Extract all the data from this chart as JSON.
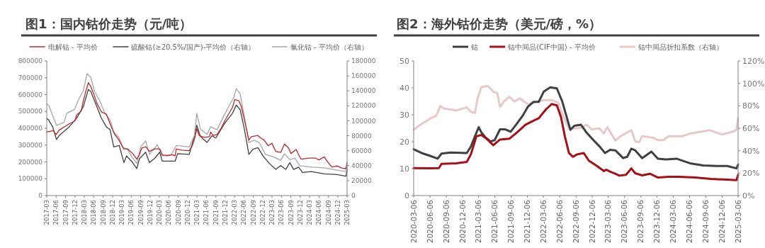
{
  "chart_data": [
    {
      "type": "line",
      "title": "图1：国内钴价走势（元/吨）",
      "legend": "top",
      "xlim": [
        "2017-03",
        "2025-03"
      ],
      "xticks": [
        "2017-03",
        "2017-06",
        "2017-09",
        "2017-12",
        "2018-03",
        "2018-06",
        "2018-09",
        "2018-12",
        "2019-03",
        "2019-06",
        "2019-09",
        "2019-12",
        "2020-03",
        "2020-06",
        "2020-09",
        "2020-12",
        "2021-03",
        "2021-06",
        "2021-09",
        "2021-12",
        "2022-03",
        "2022-06",
        "2022-09",
        "2022-12",
        "2023-03",
        "2023-06",
        "2023-09",
        "2023-12",
        "2024-03",
        "2024-06",
        "2024-09",
        "2024-12",
        "2025-03"
      ],
      "ylim": [
        0,
        800000
      ],
      "yticks": [
        0,
        100000,
        200000,
        300000,
        400000,
        500000,
        600000,
        700000,
        800000
      ],
      "y2lim": [
        0,
        180000
      ],
      "y2ticks": [
        0,
        20000,
        40000,
        60000,
        80000,
        100000,
        120000,
        140000,
        160000,
        180000
      ],
      "series": [
        {
          "name": "硫酸钴(≥20.5%/国产)-平均价（右轴）",
          "color": "#404040",
          "axis": "y2",
          "x": [
            "2017-03-01",
            "2017-03-20",
            "2017-04-27",
            "2017-06-04",
            "2017-06-28",
            "2017-10-06",
            "2017-12-19",
            "2018-02-20",
            "2018-04-10",
            "2018-05-04",
            "2018-07-04",
            "2018-08-13",
            "2018-10-01",
            "2018-11-07",
            "2018-12-13",
            "2019-02-04",
            "2019-03-22",
            "2019-04-16",
            "2019-06-16",
            "2019-07-25",
            "2019-08-19",
            "2019-10-19",
            "2019-11-25",
            "2020-01-16",
            "2020-03-04",
            "2020-03-28",
            "2020-08-01",
            "2020-08-25",
            "2020-12-16",
            "2021-02-04",
            "2021-02-28",
            "2021-04-04",
            "2021-06-07",
            "2021-07-25",
            "2021-09-01",
            "2021-11-28",
            "2022-02-10",
            "2022-03-19",
            "2022-04-25",
            "2022-06-01",
            "2022-07-07",
            "2022-07-19",
            "2022-08-28",
            "2022-10-16",
            "2022-12-04",
            "2023-02-04",
            "2023-04-07",
            "2023-05-25",
            "2023-07-13",
            "2023-08-22",
            "2023-09-28",
            "2023-11-16",
            "2023-12-22",
            "2024-03-19",
            "2024-07-22",
            "2024-11-22",
            "2025-02-19",
            "2025-03-01"
          ],
          "values": [
            103000,
            101000,
            92000,
            75000,
            80000,
            92000,
            104000,
            119000,
            142000,
            139000,
            118000,
            104000,
            92000,
            88000,
            65000,
            67000,
            44000,
            53000,
            44000,
            36000,
            49000,
            58000,
            44000,
            50000,
            58000,
            46000,
            46000,
            56000,
            55000,
            79000,
            94000,
            79000,
            71000,
            80000,
            77000,
            97000,
            110000,
            121000,
            115000,
            92000,
            65000,
            55000,
            62000,
            64000,
            53000,
            43000,
            35000,
            40000,
            35000,
            44000,
            35000,
            38000,
            31000,
            32000,
            29000,
            28000,
            26000,
            35000
          ]
        },
        {
          "name": "氯化钴 - 平均价（右轴）",
          "color": "#a6a6a6",
          "axis": "y2",
          "x": [
            "2017-03-01",
            "2017-03-20",
            "2017-04-27",
            "2017-06-04",
            "2017-08-17",
            "2017-09-11",
            "2017-11-25",
            "2018-01-13",
            "2018-02-20",
            "2018-03-28",
            "2018-05-04",
            "2018-06-10",
            "2018-07-29",
            "2018-09-19",
            "2018-11-07",
            "2018-12-13",
            "2019-02-04",
            "2019-03-10",
            "2019-04-28",
            "2019-06-16",
            "2019-07-25",
            "2019-09-01",
            "2019-10-19",
            "2019-11-25",
            "2020-02-10",
            "2020-03-28",
            "2020-06-25",
            "2020-08-13",
            "2020-12-16",
            "2021-02-04",
            "2021-02-28",
            "2021-04-04",
            "2021-06-07",
            "2021-07-13",
            "2021-09-13",
            "2021-11-15",
            "2022-01-16",
            "2022-02-22",
            "2022-03-19",
            "2022-04-25",
            "2022-06-13",
            "2022-07-19",
            "2022-09-09",
            "2022-10-28",
            "2022-12-28",
            "2023-03-13",
            "2023-05-25",
            "2023-07-01",
            "2023-08-22",
            "2023-10-10",
            "2023-11-28",
            "2024-03-19",
            "2024-07-22",
            "2024-11-22",
            "2025-02-19",
            "2025-03-01"
          ],
          "values": [
            122000,
            121000,
            107000,
            94000,
            98000,
            110000,
            115000,
            131000,
            140000,
            163000,
            158000,
            139000,
            127000,
            110000,
            101000,
            85000,
            77000,
            65000,
            61000,
            50000,
            43000,
            65000,
            73000,
            55000,
            68000,
            53000,
            55000,
            67000,
            65000,
            80000,
            110000,
            89000,
            82000,
            92000,
            88000,
            106000,
            122000,
            131000,
            143000,
            136000,
            100000,
            71000,
            74000,
            71000,
            55000,
            52000,
            47000,
            56000,
            48000,
            50000,
            40000,
            38000,
            37000,
            34000,
            32000,
            38000
          ]
        },
        {
          "name": "电解钴 - 平均价",
          "color": "#c0272d",
          "x": [
            "2017-03-01",
            "2017-05-01",
            "2017-06-01",
            "2017-07-01",
            "2017-10-01",
            "2017-12-01",
            "2017-12-15",
            "2018-02-01",
            "2018-02-15",
            "2018-03-15",
            "2018-04-10",
            "2018-05-01",
            "2018-06-01",
            "2018-07-01",
            "2018-08-15",
            "2018-10-01",
            "2018-11-01",
            "2018-12-15",
            "2019-02-01",
            "2019-03-20",
            "2019-04-28",
            "2019-06-15",
            "2019-07-25",
            "2019-08-20",
            "2019-09-12",
            "2019-10-20",
            "2019-11-25",
            "2020-01-15",
            "2020-03-05",
            "2020-03-28",
            "2020-05-15",
            "2020-07-05",
            "2020-08-01",
            "2020-08-12",
            "2020-10-01",
            "2020-12-15",
            "2021-01-10",
            "2021-02-03",
            "2021-03-01",
            "2021-03-22",
            "2021-05-12",
            "2021-07-01",
            "2021-07-12",
            "2021-08-07",
            "2021-09-12",
            "2021-10-20",
            "2021-11-27",
            "2022-01-15",
            "2022-02-10",
            "2022-03-04",
            "2022-04-12",
            "2022-05-06",
            "2022-06-01",
            "2022-06-25",
            "2022-07-20",
            "2022-08-13",
            "2022-10-15",
            "2022-11-09",
            "2022-12-15",
            "2023-01-22",
            "2023-03-01",
            "2023-04-06",
            "2023-05-25",
            "2023-07-01",
            "2023-08-09",
            "2023-09-02",
            "2023-10-22",
            "2023-11-16",
            "2023-12-10",
            "2024-02-25",
            "2024-04-25",
            "2024-06-01",
            "2024-07-22",
            "2024-08-28",
            "2024-10-04",
            "2024-11-22",
            "2025-01-12",
            "2025-02-18",
            "2025-03-01"
          ],
          "values": [
            377000,
            386000,
            363000,
            390000,
            424000,
            444000,
            477000,
            504000,
            550000,
            617000,
            671000,
            651000,
            604000,
            550000,
            497000,
            484000,
            437000,
            370000,
            330000,
            277000,
            277000,
            250000,
            216000,
            243000,
            283000,
            290000,
            263000,
            277000,
            277000,
            243000,
            236000,
            243000,
            236000,
            277000,
            270000,
            267000,
            290000,
            330000,
            397000,
            357000,
            346000,
            350000,
            377000,
            357000,
            363000,
            397000,
            444000,
            497000,
            524000,
            570000,
            564000,
            530000,
            464000,
            397000,
            330000,
            350000,
            357000,
            343000,
            330000,
            297000,
            310000,
            263000,
            256000,
            306000,
            283000,
            250000,
            274000,
            243000,
            216000,
            223000,
            223000,
            212000,
            230000,
            196000,
            170000,
            176000,
            163000,
            159000,
            196000
          ]
        }
      ]
    },
    {
      "type": "line",
      "title": "图2：海外钴价走势（美元/磅，%）",
      "legend": "top",
      "xlim": [
        "2020-03-06",
        "2025-03-06"
      ],
      "xticks": [
        "2020-03-06",
        "2020-06-06",
        "2020-09-06",
        "2020-12-06",
        "2021-03-06",
        "2021-06-06",
        "2021-09-06",
        "2021-12-06",
        "2022-03-06",
        "2022-06-06",
        "2022-09-06",
        "2022-12-06",
        "2023-03-06",
        "2023-06-06",
        "2023-09-06",
        "2023-12-06",
        "2024-03-06",
        "2024-06-06",
        "2024-09-06",
        "2024-12-06",
        "2025-03-06"
      ],
      "ylim": [
        0,
        50
      ],
      "yticks": [
        0,
        10,
        20,
        30,
        40,
        50
      ],
      "y2lim": [
        0,
        120
      ],
      "y2ticks": [
        {
          "value": 0,
          "label": "0%"
        },
        {
          "value": 20,
          "label": "20%"
        },
        {
          "value": 40,
          "label": "40%"
        },
        {
          "value": 60,
          "label": "60%"
        },
        {
          "value": 80,
          "label": "80%"
        },
        {
          "value": 100,
          "label": "100%"
        },
        {
          "value": 120,
          "label": "120%"
        }
      ],
      "series": [
        {
          "name": "钴中间品折扣系数（右轴）",
          "color": "#e8c8cc",
          "axis": "y2",
          "x": [
            "2020-03-06",
            "2020-04-13",
            "2020-06-04",
            "2020-07-11",
            "2020-08-03",
            "2020-08-25",
            "2020-10-31",
            "2020-12-30",
            "2021-01-22",
            "2021-02-14",
            "2021-02-28",
            "2021-03-22",
            "2021-04-28",
            "2021-05-28",
            "2021-06-20",
            "2021-07-05",
            "2021-07-27",
            "2021-08-26",
            "2021-09-25",
            "2021-10-25",
            "2021-12-09",
            "2022-01-24",
            "2022-03-08",
            "2022-04-22",
            "2022-05-28",
            "2022-06-28",
            "2022-07-28",
            "2022-09-04",
            "2022-10-04",
            "2022-11-03",
            "2022-12-02",
            "2023-01-17",
            "2023-02-09",
            "2023-03-01",
            "2023-03-23",
            "2023-04-15",
            "2023-05-15",
            "2023-06-21",
            "2023-07-14",
            "2023-08-05",
            "2023-08-28",
            "2023-09-13",
            "2023-11-11",
            "2023-12-11",
            "2024-01-10",
            "2024-02-09",
            "2024-04-23",
            "2024-06-08",
            "2024-08-06",
            "2024-09-28",
            "2024-12-05",
            "2025-02-03",
            "2025-02-25",
            "2025-03-06"
          ],
          "values": [
            58.6,
            63.2,
            68.3,
            71.3,
            79.8,
            77.5,
            75.9,
            78.6,
            74.7,
            73.6,
            86.2,
            96.6,
            97.7,
            92.6,
            91.3,
            78.9,
            83.9,
            88.1,
            83.9,
            86.7,
            81.2,
            83.5,
            85.1,
            85.1,
            82.8,
            70.1,
            59.8,
            59.8,
            60.5,
            63.2,
            59.1,
            59.8,
            55.2,
            60.9,
            55.2,
            49,
            52.9,
            56.3,
            58.2,
            48.3,
            47.6,
            52.9,
            51.7,
            49.4,
            49.4,
            52.9,
            52.9,
            55.2,
            56.8,
            58.2,
            54.5,
            56.8,
            58.6,
            69
          ]
        },
        {
          "name": "钴",
          "color": "#404040",
          "x": [
            "2020-03-06",
            "2020-04-20",
            "2020-06-04",
            "2020-07-19",
            "2020-08-10",
            "2020-10-01",
            "2020-12-30",
            "2021-01-22",
            "2021-02-14",
            "2021-03-07",
            "2021-03-22",
            "2021-04-14",
            "2021-05-13",
            "2021-06-05",
            "2021-07-05",
            "2021-08-04",
            "2021-09-03",
            "2021-10-03",
            "2021-11-10",
            "2021-12-09",
            "2022-01-09",
            "2022-02-08",
            "2022-03-08",
            "2022-04-14",
            "2022-05-21",
            "2022-06-20",
            "2022-07-13",
            "2022-08-05",
            "2022-08-27",
            "2022-10-04",
            "2022-11-03",
            "2022-12-10",
            "2023-01-17",
            "2023-02-16",
            "2023-03-16",
            "2023-04-15",
            "2023-05-29",
            "2023-06-21",
            "2023-07-14",
            "2023-08-05",
            "2023-09-13",
            "2023-11-04",
            "2023-12-11",
            "2024-01-25",
            "2024-03-24",
            "2024-06-08",
            "2024-08-22",
            "2024-11-05",
            "2025-01-04",
            "2025-02-25",
            "2025-03-06"
          ],
          "values": [
            17.2,
            15.8,
            14.8,
            13.7,
            15.6,
            16,
            15.8,
            18.2,
            22,
            25.4,
            23.5,
            21.6,
            20.1,
            20.6,
            24.6,
            24.6,
            23.7,
            26.3,
            29.7,
            33,
            34.8,
            34.8,
            38.6,
            40.2,
            39.8,
            35,
            29.7,
            24.4,
            25.9,
            26.3,
            23.5,
            20.8,
            18.2,
            15.8,
            17,
            16.8,
            13.9,
            14.4,
            17.4,
            16.8,
            13.9,
            16.3,
            13.7,
            13.4,
            13.7,
            12,
            11.2,
            11,
            11,
            10.1,
            11.5
          ]
        },
        {
          "name": "钴中间品(CIF中国) - 平均价",
          "color": "#a50f15",
          "x": [
            "2020-03-06",
            "2020-06-04",
            "2020-07-26",
            "2020-08-10",
            "2020-10-31",
            "2020-12-30",
            "2021-01-22",
            "2021-02-22",
            "2021-03-22",
            "2021-04-21",
            "2021-05-28",
            "2021-07-05",
            "2021-08-26",
            "2021-10-10",
            "2021-11-25",
            "2022-01-09",
            "2022-02-08",
            "2022-03-22",
            "2022-04-22",
            "2022-05-21",
            "2022-06-13",
            "2022-07-05",
            "2022-07-28",
            "2022-08-20",
            "2022-09-12",
            "2022-10-19",
            "2022-11-18",
            "2023-01-02",
            "2023-02-09",
            "2023-02-23",
            "2023-03-16",
            "2023-04-15",
            "2023-05-07",
            "2023-06-14",
            "2023-07-14",
            "2023-08-05",
            "2023-09-13",
            "2023-10-27",
            "2023-12-11",
            "2024-02-09",
            "2024-04-08",
            "2024-07-07",
            "2024-10-05",
            "2025-01-04",
            "2025-02-25",
            "2025-03-06"
          ],
          "values": [
            10.2,
            10.1,
            10.2,
            11.8,
            12,
            12.5,
            15.3,
            22,
            22.5,
            21.1,
            18.7,
            20.8,
            21.1,
            23.5,
            26.3,
            27.8,
            28.7,
            32.1,
            34,
            33.5,
            29.2,
            22,
            15.8,
            14.4,
            15.3,
            15.8,
            12.9,
            11,
            9.1,
            9.6,
            8.9,
            8.1,
            7.4,
            7.7,
            10.1,
            8.3,
            7.5,
            8.1,
            6.7,
            7,
            7,
            6.7,
            6.2,
            5.9,
            5.7,
            7.7
          ]
        }
      ]
    }
  ]
}
